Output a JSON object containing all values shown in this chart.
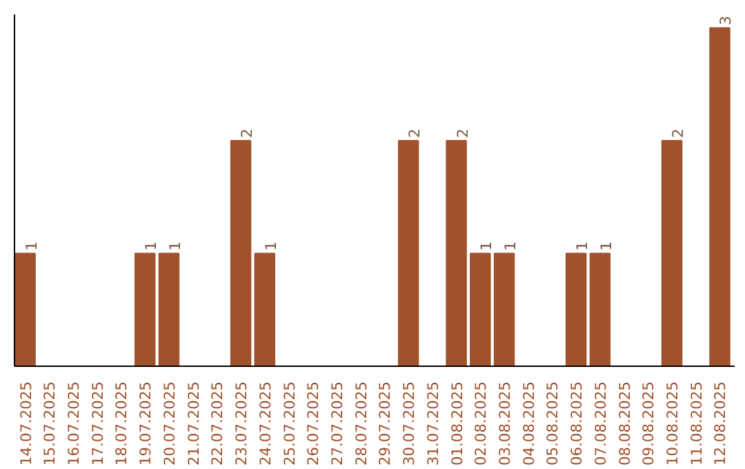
{
  "chart_data": {
    "type": "bar",
    "categories": [
      "14.07.2025",
      "15.07.2025",
      "16.07.2025",
      "17.07.2025",
      "18.07.2025",
      "19.07.2025",
      "20.07.2025",
      "21.07.2025",
      "22.07.2025",
      "23.07.2025",
      "24.07.2025",
      "25.07.2025",
      "26.07.2025",
      "27.07.2025",
      "28.07.2025",
      "29.07.2025",
      "30.07.2025",
      "31.07.2025",
      "01.08.2025",
      "02.08.2025",
      "03.08.2025",
      "04.08.2025",
      "05.08.2025",
      "06.08.2025",
      "07.08.2025",
      "08.08.2025",
      "09.08.2025",
      "10.08.2025",
      "11.08.2025",
      "12.08.2025"
    ],
    "values": [
      1,
      0,
      0,
      0,
      0,
      1,
      1,
      0,
      0,
      2,
      1,
      0,
      0,
      0,
      0,
      0,
      2,
      0,
      2,
      1,
      1,
      0,
      0,
      1,
      1,
      0,
      0,
      2,
      0,
      3
    ],
    "value_labels": [
      "1",
      null,
      null,
      null,
      null,
      "1",
      "1",
      null,
      null,
      "2",
      "1",
      null,
      null,
      null,
      null,
      null,
      "2",
      null,
      "2",
      "1",
      "1",
      null,
      null,
      "1",
      "1",
      null,
      null,
      "2",
      null,
      "3"
    ],
    "color": "#a0522d",
    "grid": false,
    "tick_labels": "x"
  }
}
